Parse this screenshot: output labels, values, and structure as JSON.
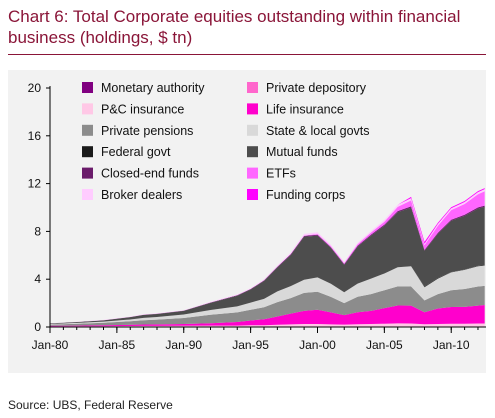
{
  "title": "Chart 6: Total Corporate equities outstanding within financial business (holdings, $ tn)",
  "source": "Source: UBS, Federal Reserve",
  "chart_data": {
    "type": "area",
    "title": "Chart 6: Total Corporate equities outstanding within financial business (holdings, $ tn)",
    "xlabel": "",
    "ylabel": "",
    "x": [
      1980,
      1982,
      1984,
      1986,
      1987,
      1988,
      1990,
      1992,
      1994,
      1995,
      1996,
      1997,
      1998,
      1999,
      2000,
      2001,
      2002,
      2003,
      2004,
      2005,
      2006,
      2007,
      2008,
      2009,
      2010,
      2011,
      2012,
      2012.5
    ],
    "x_ticks": [
      1980,
      1985,
      1990,
      1995,
      2000,
      2005,
      2010
    ],
    "x_tick_labels": [
      "Jan-80",
      "Jan-85",
      "Jan-90",
      "Jan-95",
      "Jan-00",
      "Jan-05",
      "Jan-10"
    ],
    "ylim": [
      0,
      20
    ],
    "y_ticks": [
      0,
      4,
      8,
      12,
      16,
      20
    ],
    "grid": false,
    "legend_position": "top-left",
    "series": [
      {
        "name": "Monetary authority",
        "color": "#800080",
        "values": [
          0,
          0,
          0,
          0,
          0,
          0,
          0,
          0,
          0,
          0,
          0,
          0,
          0,
          0,
          0,
          0,
          0,
          0,
          0,
          0,
          0,
          0,
          0,
          0,
          0,
          0,
          0,
          0
        ]
      },
      {
        "name": "Private depository",
        "color": "#ff66cc",
        "values": [
          0,
          0,
          0,
          0,
          0,
          0,
          0,
          0,
          0,
          0,
          0,
          0,
          0.02,
          0.03,
          0.03,
          0.02,
          0.02,
          0.03,
          0.03,
          0.04,
          0.04,
          0.04,
          0.03,
          0.03,
          0.04,
          0.04,
          0.04,
          0.04
        ]
      },
      {
        "name": "P&C insurance",
        "color": "#ffc8e6",
        "values": [
          0.05,
          0.06,
          0.07,
          0.08,
          0.09,
          0.09,
          0.1,
          0.12,
          0.12,
          0.14,
          0.15,
          0.18,
          0.2,
          0.22,
          0.22,
          0.2,
          0.18,
          0.2,
          0.22,
          0.24,
          0.26,
          0.25,
          0.2,
          0.22,
          0.23,
          0.24,
          0.25,
          0.25
        ]
      },
      {
        "name": "Life insurance",
        "color": "#ff00cc",
        "values": [
          0.05,
          0.06,
          0.08,
          0.1,
          0.12,
          0.13,
          0.15,
          0.2,
          0.3,
          0.4,
          0.5,
          0.7,
          0.9,
          1.1,
          1.2,
          1.0,
          0.8,
          1.0,
          1.1,
          1.3,
          1.5,
          1.5,
          1.0,
          1.3,
          1.4,
          1.4,
          1.5,
          1.55
        ]
      },
      {
        "name": "Private pensions",
        "color": "#8c8c8c",
        "values": [
          0.1,
          0.15,
          0.2,
          0.3,
          0.35,
          0.4,
          0.5,
          0.7,
          0.8,
          0.9,
          1.0,
          1.2,
          1.3,
          1.5,
          1.5,
          1.3,
          1.0,
          1.3,
          1.4,
          1.5,
          1.6,
          1.6,
          1.0,
          1.2,
          1.4,
          1.5,
          1.6,
          1.6
        ]
      },
      {
        "name": "State & local govts",
        "color": "#d9d9d9",
        "values": [
          0.05,
          0.07,
          0.1,
          0.15,
          0.2,
          0.22,
          0.3,
          0.4,
          0.5,
          0.6,
          0.7,
          0.9,
          1.0,
          1.1,
          1.2,
          1.1,
          0.9,
          1.1,
          1.3,
          1.4,
          1.6,
          1.7,
          1.1,
          1.3,
          1.5,
          1.6,
          1.7,
          1.7
        ]
      },
      {
        "name": "Federal govt",
        "color": "#1a1a1a",
        "values": [
          0,
          0,
          0,
          0,
          0,
          0,
          0,
          0,
          0,
          0,
          0,
          0,
          0,
          0,
          0,
          0,
          0,
          0,
          0,
          0,
          0,
          0,
          0.05,
          0.05,
          0.02,
          0.02,
          0.02,
          0.02
        ]
      },
      {
        "name": "Mutual funds",
        "color": "#4d4d4d",
        "values": [
          0.05,
          0.08,
          0.1,
          0.2,
          0.25,
          0.25,
          0.3,
          0.6,
          0.9,
          1.1,
          1.5,
          2.0,
          2.6,
          3.6,
          3.5,
          3.0,
          2.3,
          3.1,
          3.6,
          4.0,
          4.6,
          4.9,
          3.0,
          3.7,
          4.3,
          4.5,
          4.8,
          4.9
        ]
      },
      {
        "name": "Closed-end funds",
        "color": "#6a1b6a",
        "values": [
          0,
          0,
          0.01,
          0.01,
          0.02,
          0.02,
          0.02,
          0.03,
          0.04,
          0.04,
          0.05,
          0.06,
          0.07,
          0.07,
          0.07,
          0.06,
          0.06,
          0.07,
          0.08,
          0.09,
          0.1,
          0.1,
          0.07,
          0.08,
          0.09,
          0.09,
          0.1,
          0.1
        ]
      },
      {
        "name": "ETFs",
        "color": "#ff66ff",
        "values": [
          0,
          0,
          0,
          0,
          0,
          0,
          0,
          0,
          0,
          0,
          0,
          0.01,
          0.02,
          0.03,
          0.06,
          0.07,
          0.08,
          0.12,
          0.17,
          0.24,
          0.35,
          0.5,
          0.4,
          0.6,
          0.8,
          0.9,
          1.1,
          1.2
        ]
      },
      {
        "name": "Broker dealers",
        "color": "#ffccff",
        "values": [
          0.02,
          0.02,
          0.03,
          0.03,
          0.03,
          0.03,
          0.04,
          0.05,
          0.06,
          0.06,
          0.08,
          0.1,
          0.12,
          0.14,
          0.15,
          0.13,
          0.1,
          0.12,
          0.13,
          0.15,
          0.18,
          0.2,
          0.12,
          0.15,
          0.16,
          0.17,
          0.18,
          0.18
        ]
      },
      {
        "name": "Funding corps",
        "color": "#ff00ff",
        "values": [
          0,
          0,
          0,
          0,
          0,
          0,
          0,
          0,
          0,
          0,
          0,
          0,
          0,
          0,
          0,
          0,
          0,
          0,
          0,
          0,
          0,
          0.1,
          0.15,
          0.1,
          0.08,
          0.08,
          0.08,
          0.08
        ]
      }
    ],
    "legend_order": [
      [
        "Monetary authority",
        "Private depository"
      ],
      [
        "P&C insurance",
        "Life insurance"
      ],
      [
        "Private pensions",
        "State & local govts"
      ],
      [
        "Federal govt",
        "Mutual funds"
      ],
      [
        "Closed-end funds",
        "ETFs"
      ],
      [
        "Broker dealers",
        "Funding corps"
      ]
    ]
  }
}
